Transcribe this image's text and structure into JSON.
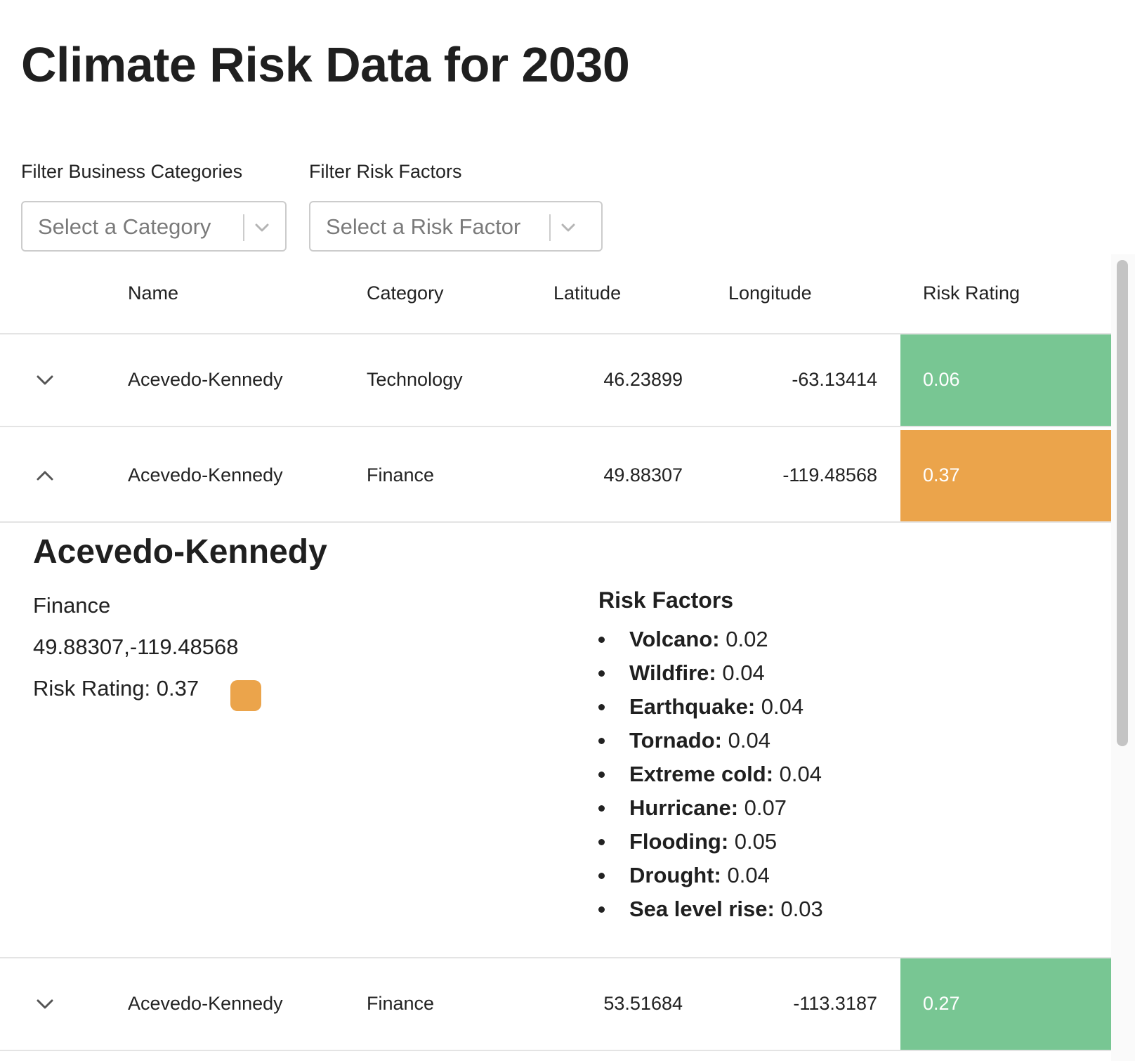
{
  "page": {
    "title": "Climate Risk Data for 2030"
  },
  "filters": {
    "category": {
      "label": "Filter Business Categories",
      "placeholder": "Select a Category"
    },
    "risk_factor": {
      "label": "Filter Risk Factors",
      "placeholder": "Select a Risk Factor"
    }
  },
  "table": {
    "columns": [
      "Name",
      "Category",
      "Latitude",
      "Longitude",
      "Risk Rating"
    ],
    "rows": [
      {
        "name": "Acevedo-Kennedy",
        "category": "Technology",
        "latitude": "46.23899",
        "longitude": "-63.13414",
        "risk_rating": "0.06",
        "risk_color": "#78c693",
        "expanded": false,
        "toggle_icon": "chevron-down-icon"
      },
      {
        "name": "Acevedo-Kennedy",
        "category": "Finance",
        "latitude": "49.88307",
        "longitude": "-119.48568",
        "risk_rating": "0.37",
        "risk_color": "#eba44b",
        "expanded": true,
        "toggle_icon": "chevron-up-icon"
      },
      {
        "name": "Acevedo-Kennedy",
        "category": "Finance",
        "latitude": "53.51684",
        "longitude": "-113.3187",
        "risk_rating": "0.27",
        "risk_color": "#78c693",
        "expanded": false,
        "toggle_icon": "chevron-down-icon"
      }
    ]
  },
  "detail": {
    "title": "Acevedo-Kennedy",
    "category": "Finance",
    "coordinates": "49.88307,-119.48568",
    "risk_rating_text": "Risk Rating: 0.37",
    "risk_color": "#eba44b",
    "factors_title": "Risk Factors",
    "factors": [
      {
        "name": "Volcano:",
        "value": "0.02"
      },
      {
        "name": "Wildfire:",
        "value": "0.04"
      },
      {
        "name": "Earthquake:",
        "value": "0.04"
      },
      {
        "name": "Tornado:",
        "value": "0.04"
      },
      {
        "name": "Extreme cold:",
        "value": "0.04"
      },
      {
        "name": "Hurricane:",
        "value": "0.07"
      },
      {
        "name": "Flooding:",
        "value": "0.05"
      },
      {
        "name": "Drought:",
        "value": "0.04"
      },
      {
        "name": "Sea level rise:",
        "value": "0.03"
      }
    ]
  },
  "colors": {
    "low_risk": "#78c693",
    "medium_risk": "#eba44b"
  }
}
